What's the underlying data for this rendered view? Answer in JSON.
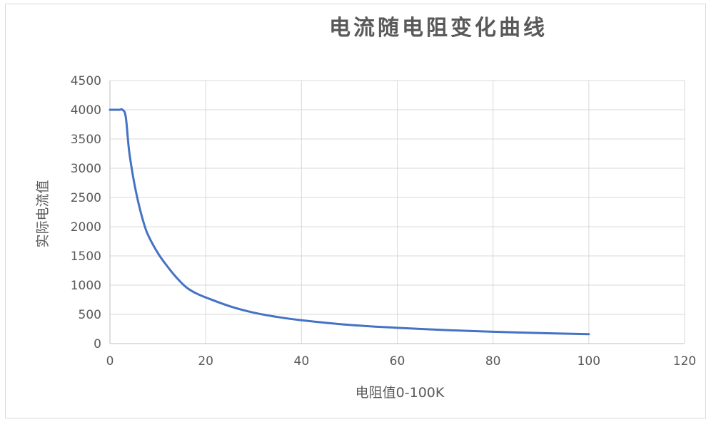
{
  "chart_data": {
    "type": "line",
    "title": "电流随电阻变化曲线",
    "xlabel": "电阻值0-100K",
    "ylabel": "实际电流值",
    "xlim": [
      0,
      120
    ],
    "ylim": [
      0,
      4500
    ],
    "xticks": [
      0,
      20,
      40,
      60,
      80,
      100,
      120
    ],
    "yticks": [
      0,
      500,
      1000,
      1500,
      2000,
      2500,
      3000,
      3500,
      4000,
      4500
    ],
    "grid": true,
    "legend": "none",
    "series": [
      {
        "color": "#4472c4",
        "x": [
          0,
          1,
          2,
          2.6,
          3.3,
          4,
          5,
          6,
          7,
          8,
          10,
          12,
          14,
          16,
          18,
          20,
          25,
          30,
          35,
          40,
          50,
          60,
          70,
          80,
          90,
          100
        ],
        "y": [
          4000,
          4000,
          4000,
          4000,
          3880,
          3300,
          2780,
          2390,
          2080,
          1850,
          1550,
          1320,
          1120,
          960,
          860,
          790,
          640,
          530,
          455,
          400,
          320,
          270,
          232,
          203,
          180,
          162
        ]
      }
    ]
  }
}
